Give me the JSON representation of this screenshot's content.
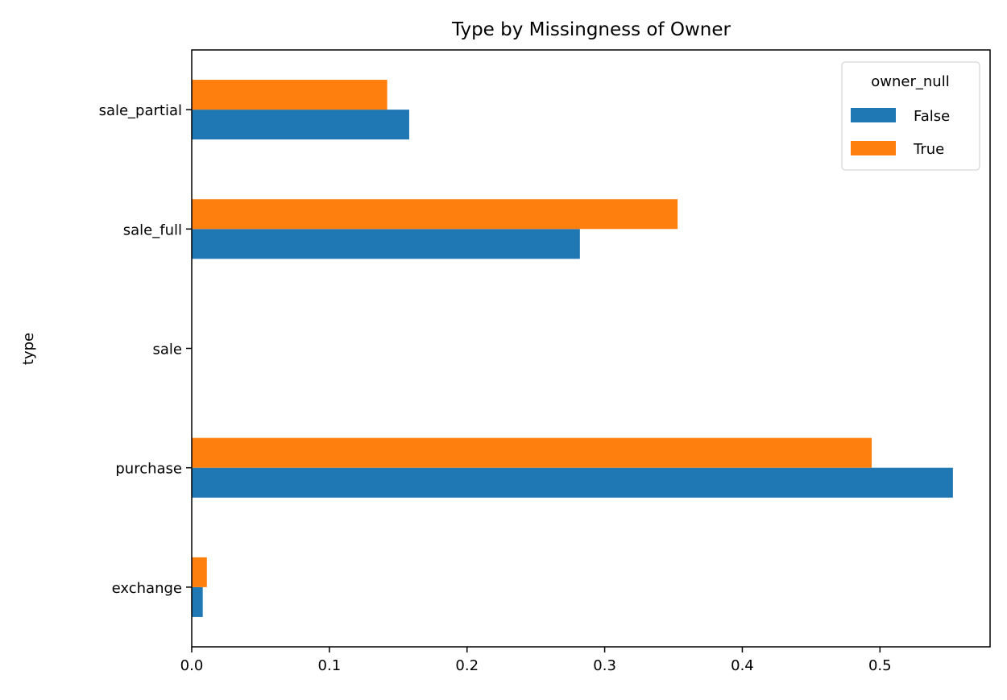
{
  "chart_data": {
    "type": "bar",
    "orientation": "horizontal",
    "title": "Type by Missingness of Owner",
    "ylabel": "type",
    "xlabel": "",
    "categories": [
      "exchange",
      "purchase",
      "sale",
      "sale_full",
      "sale_partial"
    ],
    "series": [
      {
        "name": "False",
        "color": "#1f77b4",
        "values": [
          0.008,
          0.553,
          0.0,
          0.282,
          0.158
        ]
      },
      {
        "name": "True",
        "color": "#ff7f0e",
        "values": [
          0.011,
          0.494,
          0.0,
          0.353,
          0.142
        ]
      }
    ],
    "xlim": [
      0,
      0.58
    ],
    "xticks": [
      "0.0",
      "0.1",
      "0.2",
      "0.3",
      "0.4",
      "0.5"
    ],
    "grid": false,
    "legend": {
      "title": "owner_null",
      "position": "top-right"
    }
  }
}
